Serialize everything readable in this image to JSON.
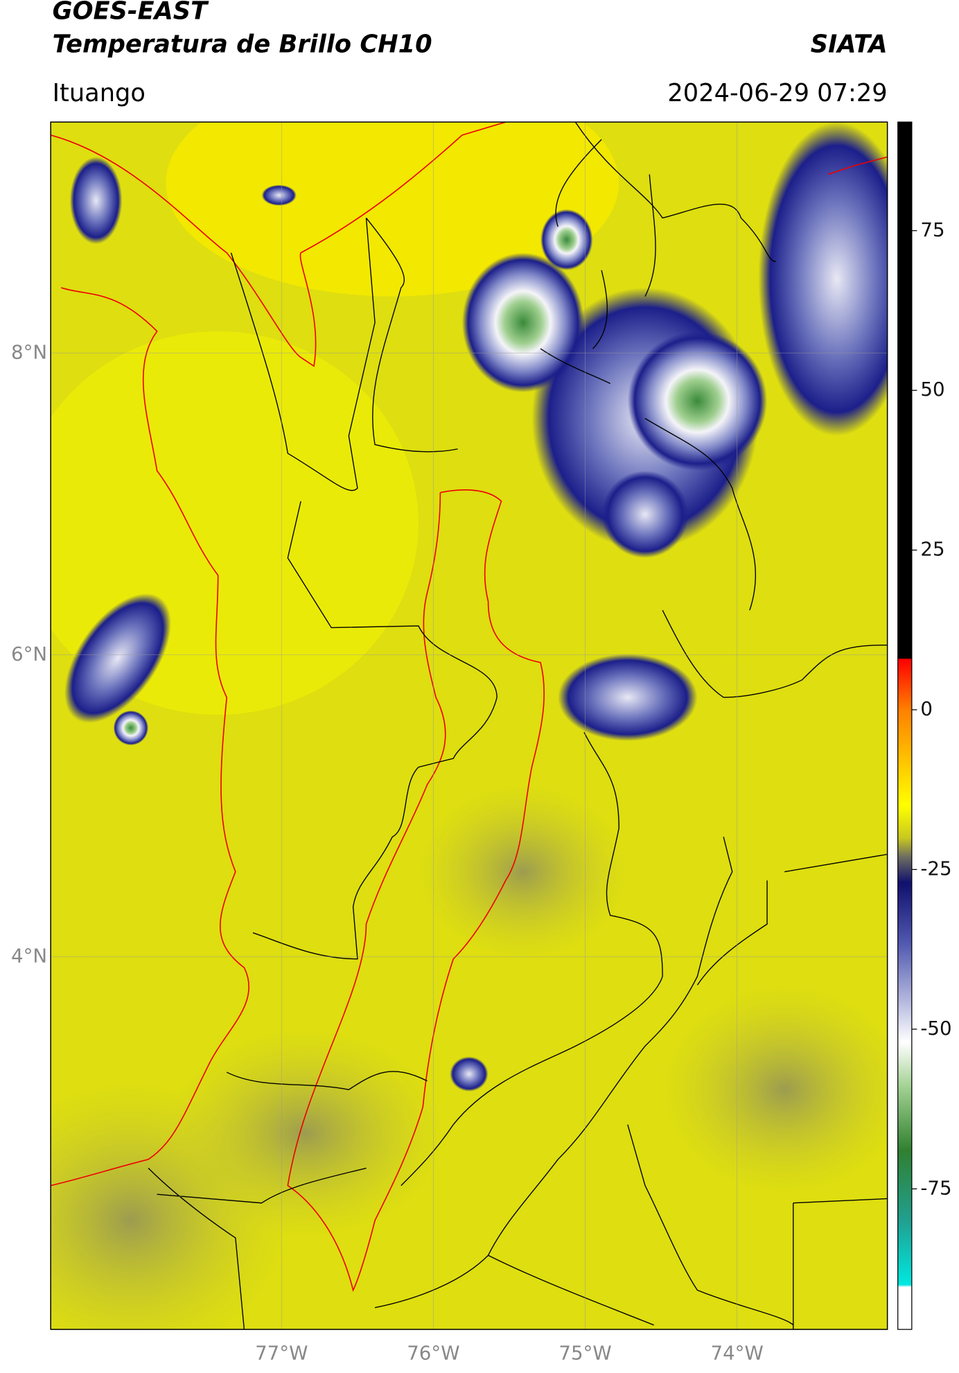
{
  "header": {
    "title": "GOES-EAST",
    "subtitle": "Temperatura de Brillo CH10",
    "source": "SIATA",
    "location": "Ituango",
    "datetime": "2024-06-29 07:29"
  },
  "map": {
    "lon_range": [
      -78.52,
      -73.01
    ],
    "lat_range": [
      1.53,
      9.53
    ],
    "lon_ticks": [
      {
        "value": -77,
        "label": "77°W"
      },
      {
        "value": -76,
        "label": "76°W"
      },
      {
        "value": -75,
        "label": "75°W"
      },
      {
        "value": -74,
        "label": "74°W"
      }
    ],
    "lat_ticks": [
      {
        "value": 8,
        "label": "8°N"
      },
      {
        "value": 6,
        "label": "6°N"
      },
      {
        "value": 4,
        "label": "4°N"
      }
    ]
  },
  "colorbar": {
    "range": [
      -97,
      92
    ],
    "ticks": [
      -75,
      -50,
      -25,
      0,
      25,
      50,
      75
    ]
  }
}
